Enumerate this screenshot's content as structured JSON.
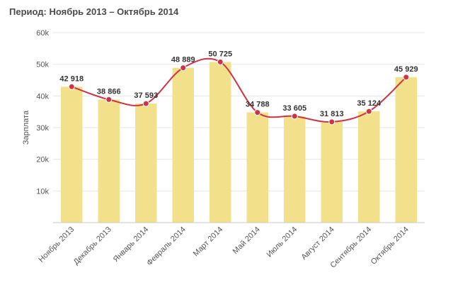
{
  "chart_data": {
    "type": "bar",
    "title": "Период: Ноябрь 2013 – Октябрь 2014",
    "ylabel": "Зарплата",
    "xlabel": "",
    "ylim": [
      0,
      60000
    ],
    "yticks": [
      "10k",
      "20k",
      "30k",
      "40k",
      "50k",
      "60k"
    ],
    "ytick_values": [
      10000,
      20000,
      30000,
      40000,
      50000,
      60000
    ],
    "grid": true,
    "categories": [
      "Ноябрь 2013",
      "Декабрь 2013",
      "Январь 2014",
      "Февраль 2014",
      "Март 2014",
      "Май 2014",
      "Июль 2014",
      "Август 2014",
      "Сентябрь 2014",
      "Октябрь 2014"
    ],
    "values": [
      42918,
      38866,
      37593,
      48889,
      50725,
      34788,
      33605,
      31813,
      35124,
      45929
    ],
    "data_labels": [
      "42 918",
      "38 866",
      "37 593",
      "48 889",
      "50 725",
      "34 788",
      "33 605",
      "31 813",
      "35 124",
      "45 929"
    ],
    "overlay": "smooth-line-with-points",
    "colors": {
      "bar": "#f2e08a",
      "line": "#cc3344",
      "point": "#cc3344",
      "grid": "#e6e6e6"
    }
  }
}
